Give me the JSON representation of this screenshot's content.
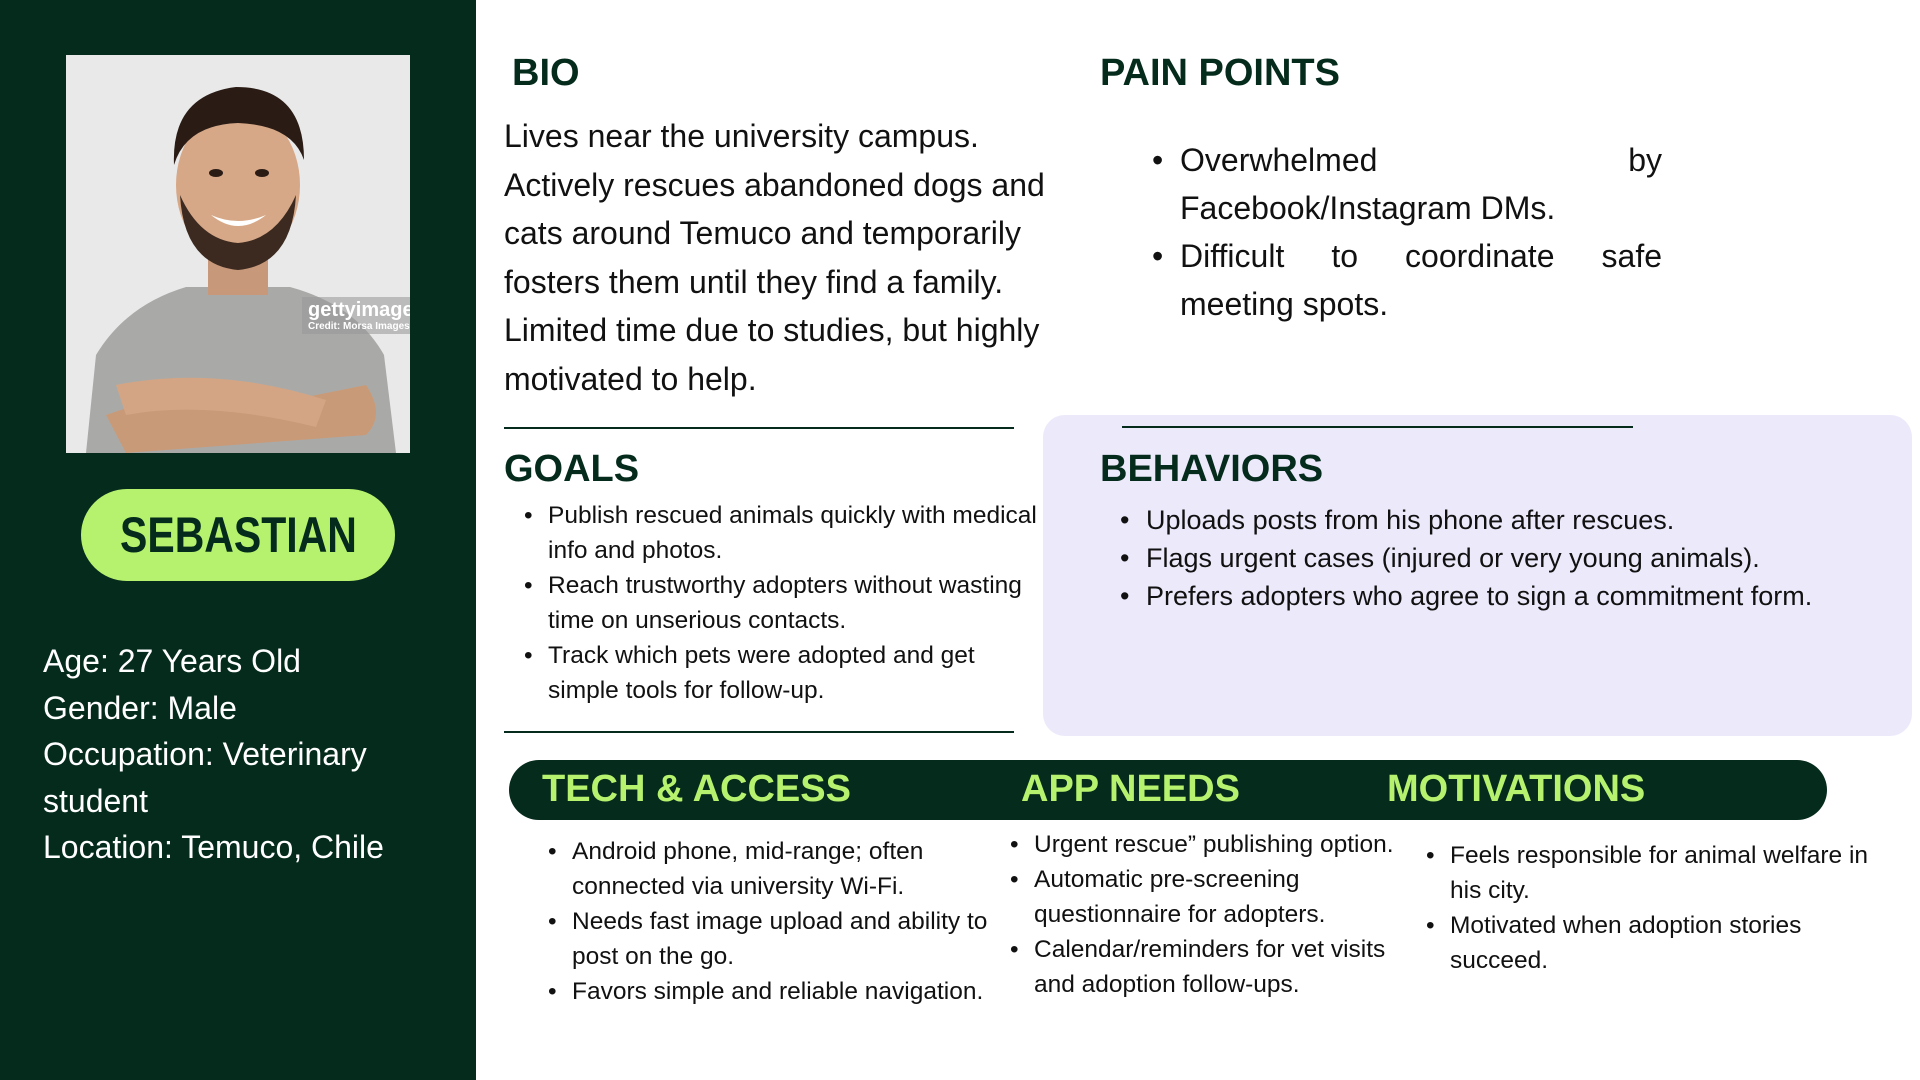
{
  "persona": {
    "name": "SEBASTIAN",
    "photo_watermark": "gettyimages",
    "photo_credit": "Credit: Morsa Images",
    "details": [
      "Age: 27 Years Old",
      "Gender: Male",
      "Occupation: Veterinary student",
      "Location: Temuco, Chile"
    ]
  },
  "bio": {
    "title": "BIO",
    "text": "Lives near the university campus. Actively rescues abandoned dogs and cats around Temuco and temporarily fosters them until they find a family. Limited time due to studies, but highly motivated to help."
  },
  "pain_points": {
    "title": "PAIN POINTS",
    "items": [
      "Overwhelmed by Facebook/Instagram DMs.",
      "Difficult to coordinate safe meeting spots."
    ]
  },
  "goals": {
    "title": "GOALS",
    "items": [
      "Publish rescued animals quickly with medical info and photos.",
      "Reach trustworthy adopters without wasting time on unserious contacts.",
      "Track which pets were adopted and get simple tools for follow-up."
    ]
  },
  "behaviors": {
    "title": "BEHAVIORS",
    "items": [
      "Uploads posts from his phone after rescues.",
      "Flags urgent cases (injured or very young animals).",
      "Prefers adopters who agree to sign a commitment form."
    ]
  },
  "tech_access": {
    "title": "TECH & ACCESS",
    "items": [
      "Android phone, mid-range; often connected via university Wi-Fi.",
      "Needs fast image upload and ability to post on the go.",
      "Favors simple and reliable navigation."
    ]
  },
  "app_needs": {
    "title": "APP NEEDS",
    "items": [
      "Urgent rescue” publishing option.",
      "Automatic pre-screening questionnaire for adopters.",
      "Calendar/reminders for vet visits and adoption follow-ups."
    ]
  },
  "motivations": {
    "title": "MOTIVATIONS",
    "items": [
      "Feels responsible for animal welfare in his city.",
      "Motivated when adoption stories succeed."
    ]
  },
  "colors": {
    "dark_green": "#052b1c",
    "lime": "#b6f26d",
    "lavender": "#ece9fb"
  }
}
